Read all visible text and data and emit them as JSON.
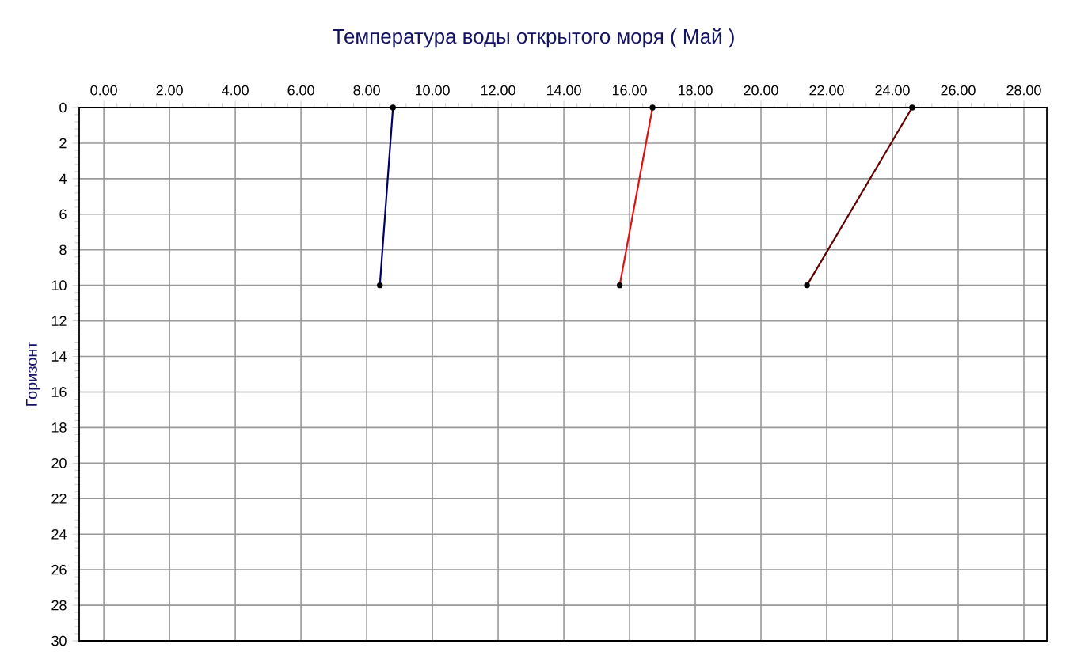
{
  "chart_data": {
    "type": "line",
    "title": "Температура воды открытого моря     ( Май )",
    "ylabel": "Горизонт",
    "xlim": [
      -0.75,
      28.7
    ],
    "ylim": [
      30,
      0
    ],
    "xticks": [
      {
        "value": 0,
        "label": "0.00"
      },
      {
        "value": 2,
        "label": "2.00"
      },
      {
        "value": 4,
        "label": "4.00"
      },
      {
        "value": 6,
        "label": "6.00"
      },
      {
        "value": 8,
        "label": "8.00"
      },
      {
        "value": 10,
        "label": "10.00"
      },
      {
        "value": 12,
        "label": "12.00"
      },
      {
        "value": 14,
        "label": "14.00"
      },
      {
        "value": 16,
        "label": "16.00"
      },
      {
        "value": 18,
        "label": "18.00"
      },
      {
        "value": 20,
        "label": "20.00"
      },
      {
        "value": 22,
        "label": "22.00"
      },
      {
        "value": 24,
        "label": "24.00"
      },
      {
        "value": 26,
        "label": "26.00"
      },
      {
        "value": 28,
        "label": "28.00"
      }
    ],
    "yticks": [
      0,
      2,
      4,
      6,
      8,
      10,
      12,
      14,
      16,
      18,
      20,
      22,
      24,
      26,
      28,
      30
    ],
    "grid": true,
    "marker": "circle",
    "line_style": "solid",
    "series": [
      {
        "color": "#000066",
        "x": [
          8.8,
          8.4
        ],
        "values": [
          0,
          10
        ]
      },
      {
        "color": "#e01010",
        "x": [
          16.7,
          15.7
        ],
        "values": [
          0,
          10
        ]
      },
      {
        "color": "#600000",
        "x": [
          24.6,
          21.4
        ],
        "values": [
          0,
          10
        ]
      }
    ]
  }
}
